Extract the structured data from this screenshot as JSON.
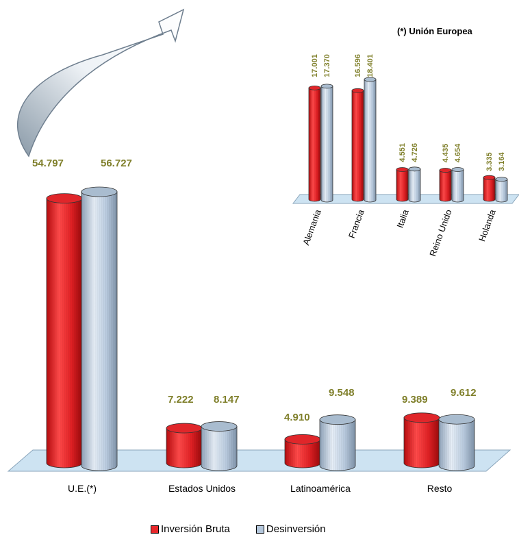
{
  "chart_data": [
    {
      "type": "bar",
      "categories": [
        "U.E.(*)",
        "Estados Unidos",
        "Latinoamérica",
        "Resto"
      ],
      "series": [
        {
          "name": "Inversión Bruta",
          "values": [
            54.797,
            7.222,
            4.91,
            9.389
          ],
          "labels": [
            "54.797",
            "7.222",
            "4.910",
            "9.389"
          ],
          "color": "#e8282b"
        },
        {
          "name": "Desinversión",
          "values": [
            56.727,
            8.147,
            9.548,
            9.612
          ],
          "labels": [
            "56.727",
            "8.147",
            "9.548",
            "9.612"
          ],
          "color": "#b4c7dc"
        }
      ],
      "ylim": [
        0,
        60
      ],
      "grid": false,
      "legend": "bottom"
    },
    {
      "type": "bar",
      "title": "(*) Unión Europea",
      "categories": [
        "Alemania",
        "Francia",
        "Italia",
        "Reino Unido",
        "Holanda"
      ],
      "series": [
        {
          "name": "Inversión Bruta",
          "values": [
            17.001,
            16.596,
            4.551,
            4.435,
            3.335
          ],
          "labels": [
            "17.001",
            "16.596",
            "4.551",
            "4.435",
            "3.335"
          ]
        },
        {
          "name": "Desinversión",
          "values": [
            17.37,
            18.401,
            4.726,
            4.654,
            3.164
          ],
          "labels": [
            "17.370",
            "18.401",
            "4.726",
            "4.654",
            "3.164"
          ]
        }
      ],
      "ylim": [
        0,
        20
      ],
      "grid": false
    }
  ],
  "legend": {
    "inversion_label": "Inversión Bruta",
    "desinversion_label": "Desinversión"
  },
  "colors": {
    "inversion": "#e8282b",
    "desinversion": "#b4c7dc",
    "floor": "#cde3f2",
    "value_text": "#7f7f2a"
  }
}
